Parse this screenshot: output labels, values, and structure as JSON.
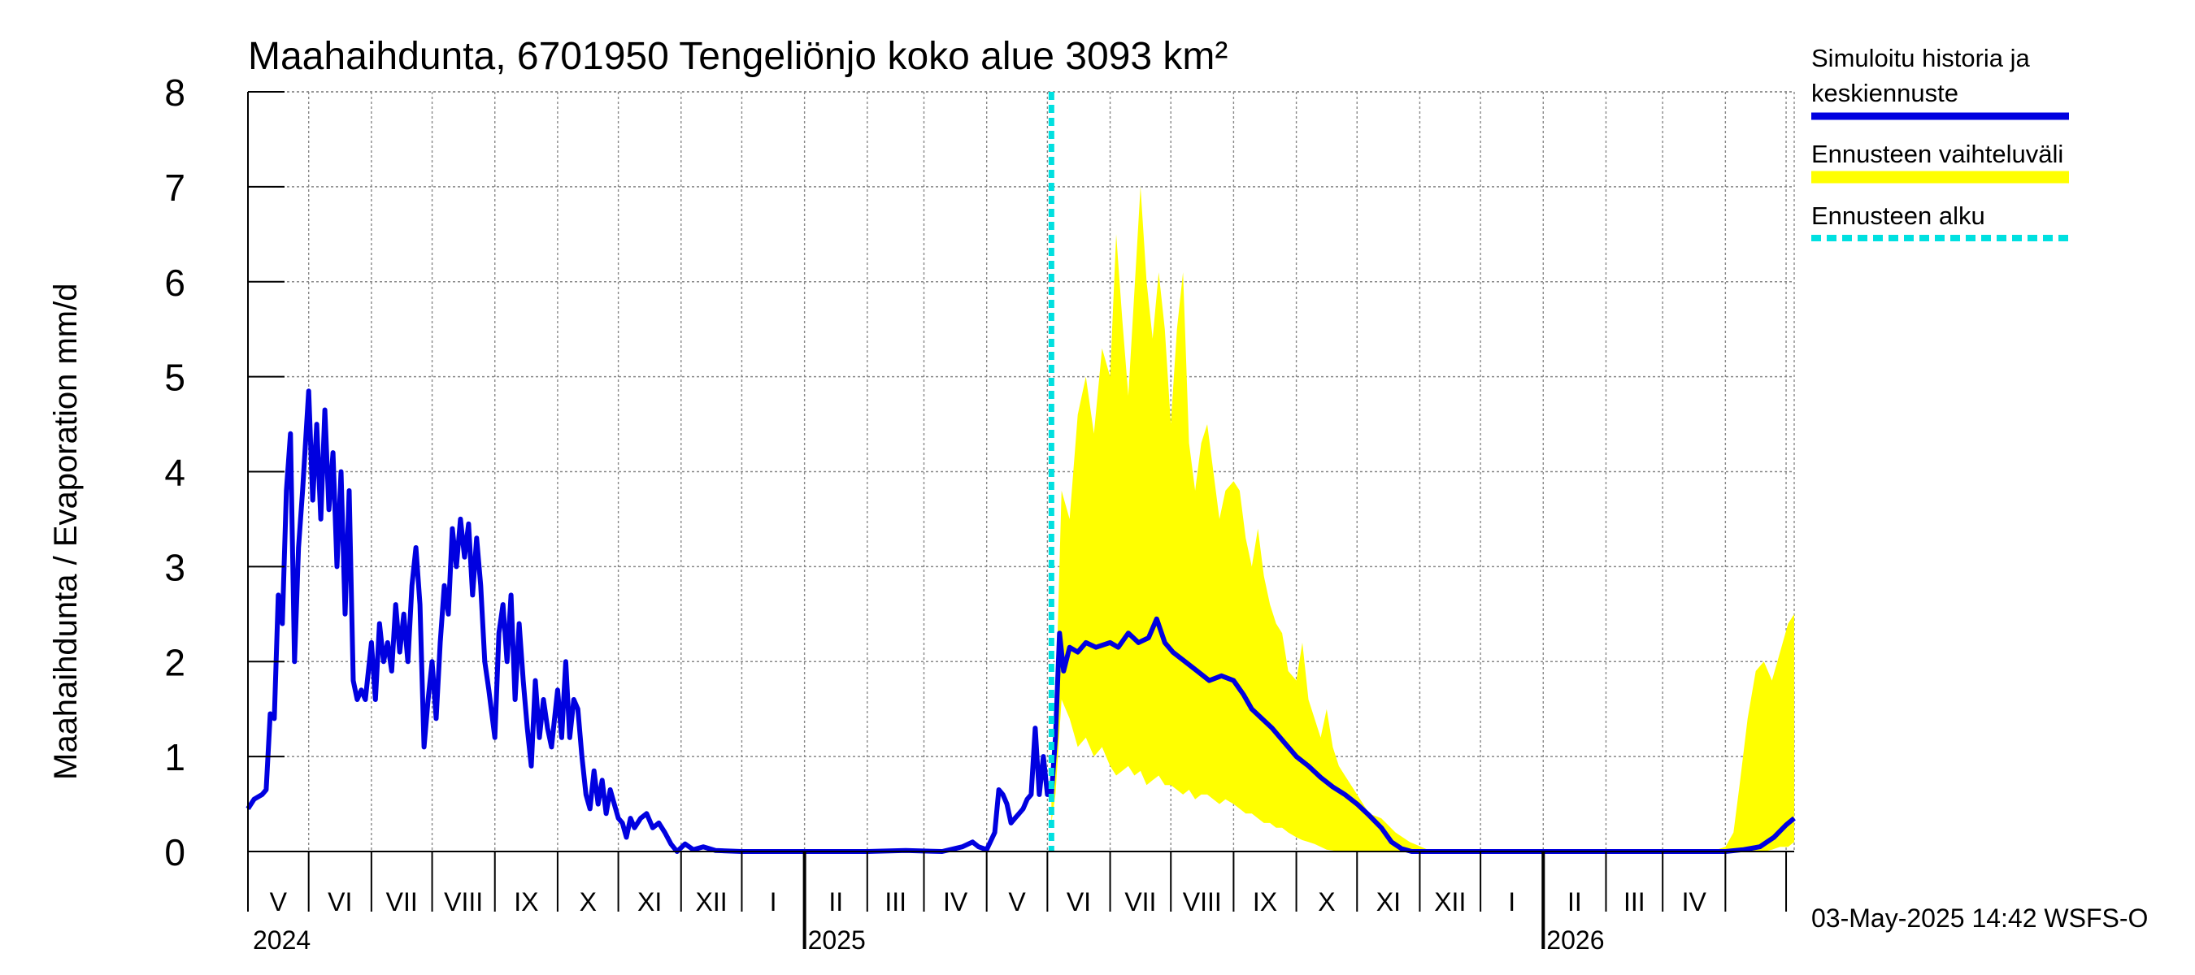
{
  "chart_data": {
    "type": "line",
    "title": "Maahaihdunta, 6701950 Tengeliönjo koko alue 3093 km²",
    "ylabel": "Maahaihdunta / Evaporation   mm/d",
    "ylim": [
      0,
      8
    ],
    "yticks": [
      "0",
      "1",
      "2",
      "3",
      "4",
      "5",
      "6",
      "7",
      "8"
    ],
    "xlim": [
      "2024-04-01",
      "2026-05-05"
    ],
    "month_labels": [
      "V",
      "VI",
      "VII",
      "VIII",
      "IX",
      "X",
      "XI",
      "XII",
      "I",
      "II",
      "III",
      "IV",
      "V",
      "VI",
      "VII",
      "VIII",
      "IX",
      "X",
      "XI",
      "XII",
      "I",
      "II",
      "III",
      "IV"
    ],
    "year_labels": [
      "2024",
      "2025",
      "2026"
    ],
    "forecast_start": "2025-05-03",
    "grid": true,
    "legend_position": "right",
    "legend": [
      {
        "label": "Simuloitu historia ja keskiennuste",
        "color": "#0000e0",
        "style": "solid"
      },
      {
        "label": "Ennusteen vaihteluväli",
        "color": "#ffff00",
        "style": "band"
      },
      {
        "label": "Ennusteen alku",
        "color": "#00e0e0",
        "style": "dashed"
      }
    ],
    "series": [
      {
        "name": "Simuloitu historia ja keskiennuste",
        "color": "#0000e0",
        "points": [
          [
            "2024-04-01",
            0.45
          ],
          [
            "2024-04-04",
            0.55
          ],
          [
            "2024-04-08",
            0.6
          ],
          [
            "2024-04-10",
            0.65
          ],
          [
            "2024-04-12",
            1.45
          ],
          [
            "2024-04-14",
            1.4
          ],
          [
            "2024-04-16",
            2.7
          ],
          [
            "2024-04-18",
            2.4
          ],
          [
            "2024-04-20",
            3.8
          ],
          [
            "2024-04-22",
            4.4
          ],
          [
            "2024-04-24",
            2.0
          ],
          [
            "2024-04-26",
            3.2
          ],
          [
            "2024-04-28",
            3.8
          ],
          [
            "2024-05-01",
            4.85
          ],
          [
            "2024-05-03",
            3.7
          ],
          [
            "2024-05-05",
            4.5
          ],
          [
            "2024-05-07",
            3.5
          ],
          [
            "2024-05-09",
            4.65
          ],
          [
            "2024-05-11",
            3.6
          ],
          [
            "2024-05-13",
            4.2
          ],
          [
            "2024-05-15",
            3.0
          ],
          [
            "2024-05-17",
            4.0
          ],
          [
            "2024-05-19",
            2.5
          ],
          [
            "2024-05-21",
            3.8
          ],
          [
            "2024-05-23",
            1.8
          ],
          [
            "2024-05-25",
            1.6
          ],
          [
            "2024-05-27",
            1.7
          ],
          [
            "2024-05-29",
            1.6
          ],
          [
            "2024-06-01",
            2.2
          ],
          [
            "2024-06-03",
            1.6
          ],
          [
            "2024-06-05",
            2.4
          ],
          [
            "2024-06-07",
            2.0
          ],
          [
            "2024-06-09",
            2.2
          ],
          [
            "2024-06-11",
            1.9
          ],
          [
            "2024-06-13",
            2.6
          ],
          [
            "2024-06-15",
            2.1
          ],
          [
            "2024-06-17",
            2.5
          ],
          [
            "2024-06-19",
            2.0
          ],
          [
            "2024-06-21",
            2.8
          ],
          [
            "2024-06-23",
            3.2
          ],
          [
            "2024-06-25",
            2.6
          ],
          [
            "2024-06-27",
            1.1
          ],
          [
            "2024-06-29",
            1.6
          ],
          [
            "2024-07-01",
            2.0
          ],
          [
            "2024-07-03",
            1.4
          ],
          [
            "2024-07-05",
            2.2
          ],
          [
            "2024-07-07",
            2.8
          ],
          [
            "2024-07-09",
            2.5
          ],
          [
            "2024-07-11",
            3.4
          ],
          [
            "2024-07-13",
            3.0
          ],
          [
            "2024-07-15",
            3.5
          ],
          [
            "2024-07-17",
            3.1
          ],
          [
            "2024-07-19",
            3.45
          ],
          [
            "2024-07-21",
            2.7
          ],
          [
            "2024-07-23",
            3.3
          ],
          [
            "2024-07-25",
            2.8
          ],
          [
            "2024-07-27",
            2.0
          ],
          [
            "2024-07-29",
            1.7
          ],
          [
            "2024-08-01",
            1.2
          ],
          [
            "2024-08-03",
            2.3
          ],
          [
            "2024-08-05",
            2.6
          ],
          [
            "2024-08-07",
            2.0
          ],
          [
            "2024-08-09",
            2.7
          ],
          [
            "2024-08-11",
            1.6
          ],
          [
            "2024-08-13",
            2.4
          ],
          [
            "2024-08-15",
            1.8
          ],
          [
            "2024-08-17",
            1.3
          ],
          [
            "2024-08-19",
            0.9
          ],
          [
            "2024-08-21",
            1.8
          ],
          [
            "2024-08-23",
            1.2
          ],
          [
            "2024-08-25",
            1.6
          ],
          [
            "2024-08-27",
            1.3
          ],
          [
            "2024-08-29",
            1.1
          ],
          [
            "2024-09-01",
            1.7
          ],
          [
            "2024-09-03",
            1.2
          ],
          [
            "2024-09-05",
            2.0
          ],
          [
            "2024-09-07",
            1.2
          ],
          [
            "2024-09-09",
            1.6
          ],
          [
            "2024-09-11",
            1.5
          ],
          [
            "2024-09-13",
            1.0
          ],
          [
            "2024-09-15",
            0.6
          ],
          [
            "2024-09-17",
            0.45
          ],
          [
            "2024-09-19",
            0.85
          ],
          [
            "2024-09-21",
            0.5
          ],
          [
            "2024-09-23",
            0.75
          ],
          [
            "2024-09-25",
            0.4
          ],
          [
            "2024-09-27",
            0.65
          ],
          [
            "2024-09-29",
            0.5
          ],
          [
            "2024-10-01",
            0.35
          ],
          [
            "2024-10-03",
            0.3
          ],
          [
            "2024-10-05",
            0.15
          ],
          [
            "2024-10-07",
            0.35
          ],
          [
            "2024-10-09",
            0.25
          ],
          [
            "2024-10-12",
            0.35
          ],
          [
            "2024-10-15",
            0.4
          ],
          [
            "2024-10-18",
            0.25
          ],
          [
            "2024-10-21",
            0.3
          ],
          [
            "2024-10-24",
            0.2
          ],
          [
            "2024-10-27",
            0.08
          ],
          [
            "2024-10-30",
            0.0
          ],
          [
            "2024-11-03",
            0.08
          ],
          [
            "2024-11-07",
            0.02
          ],
          [
            "2024-11-12",
            0.05
          ],
          [
            "2024-11-18",
            0.01
          ],
          [
            "2024-12-01",
            0.0
          ],
          [
            "2025-01-01",
            0.0
          ],
          [
            "2025-02-01",
            0.0
          ],
          [
            "2025-02-20",
            0.01
          ],
          [
            "2025-03-10",
            0.0
          ],
          [
            "2025-03-20",
            0.05
          ],
          [
            "2025-03-25",
            0.1
          ],
          [
            "2025-03-28",
            0.05
          ],
          [
            "2025-04-01",
            0.02
          ],
          [
            "2025-04-05",
            0.2
          ],
          [
            "2025-04-07",
            0.65
          ],
          [
            "2025-04-09",
            0.6
          ],
          [
            "2025-04-11",
            0.5
          ],
          [
            "2025-04-13",
            0.3
          ],
          [
            "2025-04-15",
            0.35
          ],
          [
            "2025-04-17",
            0.4
          ],
          [
            "2025-04-19",
            0.45
          ],
          [
            "2025-04-21",
            0.55
          ],
          [
            "2025-04-23",
            0.6
          ],
          [
            "2025-04-25",
            1.3
          ],
          [
            "2025-04-27",
            0.6
          ],
          [
            "2025-04-29",
            1.0
          ],
          [
            "2025-05-01",
            0.6
          ],
          [
            "2025-05-03",
            0.6
          ],
          [
            "2025-05-05",
            1.2
          ],
          [
            "2025-05-07",
            2.3
          ],
          [
            "2025-05-09",
            1.9
          ],
          [
            "2025-05-12",
            2.15
          ],
          [
            "2025-05-16",
            2.1
          ],
          [
            "2025-05-20",
            2.2
          ],
          [
            "2025-05-25",
            2.15
          ],
          [
            "2025-06-01",
            2.2
          ],
          [
            "2025-06-05",
            2.15
          ],
          [
            "2025-06-10",
            2.3
          ],
          [
            "2025-06-15",
            2.2
          ],
          [
            "2025-06-20",
            2.25
          ],
          [
            "2025-06-24",
            2.45
          ],
          [
            "2025-06-28",
            2.2
          ],
          [
            "2025-07-02",
            2.1
          ],
          [
            "2025-07-08",
            2.0
          ],
          [
            "2025-07-14",
            1.9
          ],
          [
            "2025-07-20",
            1.8
          ],
          [
            "2025-07-26",
            1.85
          ],
          [
            "2025-08-01",
            1.8
          ],
          [
            "2025-08-06",
            1.65
          ],
          [
            "2025-08-10",
            1.5
          ],
          [
            "2025-08-15",
            1.4
          ],
          [
            "2025-08-20",
            1.3
          ],
          [
            "2025-08-26",
            1.15
          ],
          [
            "2025-09-01",
            1.0
          ],
          [
            "2025-09-07",
            0.9
          ],
          [
            "2025-09-13",
            0.78
          ],
          [
            "2025-09-19",
            0.68
          ],
          [
            "2025-09-25",
            0.6
          ],
          [
            "2025-10-01",
            0.5
          ],
          [
            "2025-10-07",
            0.38
          ],
          [
            "2025-10-13",
            0.25
          ],
          [
            "2025-10-18",
            0.1
          ],
          [
            "2025-10-23",
            0.03
          ],
          [
            "2025-10-28",
            0.0
          ],
          [
            "2025-12-01",
            0.0
          ],
          [
            "2026-02-01",
            0.0
          ],
          [
            "2026-04-01",
            0.0
          ],
          [
            "2026-04-10",
            0.02
          ],
          [
            "2026-04-18",
            0.05
          ],
          [
            "2026-04-25",
            0.15
          ],
          [
            "2026-05-01",
            0.28
          ],
          [
            "2026-05-05",
            0.35
          ]
        ]
      },
      {
        "name": "Ennusteen vaihteluväli",
        "color": "#ffff00",
        "band": [
          [
            "2025-05-03",
            0.3,
            0.6
          ],
          [
            "2025-05-05",
            0.6,
            1.5
          ],
          [
            "2025-05-08",
            1.6,
            3.8
          ],
          [
            "2025-05-12",
            1.4,
            3.5
          ],
          [
            "2025-05-16",
            1.1,
            4.6
          ],
          [
            "2025-05-20",
            1.2,
            5.0
          ],
          [
            "2025-05-24",
            1.0,
            4.4
          ],
          [
            "2025-05-28",
            1.1,
            5.3
          ],
          [
            "2025-06-01",
            0.9,
            5.0
          ],
          [
            "2025-06-04",
            0.8,
            6.5
          ],
          [
            "2025-06-07",
            0.85,
            5.6
          ],
          [
            "2025-06-10",
            0.9,
            4.8
          ],
          [
            "2025-06-13",
            0.8,
            5.9
          ],
          [
            "2025-06-16",
            0.85,
            7.0
          ],
          [
            "2025-06-19",
            0.7,
            6.0
          ],
          [
            "2025-06-22",
            0.75,
            5.4
          ],
          [
            "2025-06-25",
            0.8,
            6.1
          ],
          [
            "2025-06-28",
            0.7,
            5.5
          ],
          [
            "2025-07-01",
            0.7,
            4.5
          ],
          [
            "2025-07-04",
            0.65,
            5.5
          ],
          [
            "2025-07-07",
            0.6,
            6.1
          ],
          [
            "2025-07-10",
            0.65,
            4.3
          ],
          [
            "2025-07-13",
            0.55,
            3.8
          ],
          [
            "2025-07-16",
            0.6,
            4.3
          ],
          [
            "2025-07-19",
            0.6,
            4.5
          ],
          [
            "2025-07-22",
            0.55,
            4.0
          ],
          [
            "2025-07-25",
            0.5,
            3.5
          ],
          [
            "2025-07-28",
            0.55,
            3.8
          ],
          [
            "2025-08-01",
            0.5,
            3.9
          ],
          [
            "2025-08-04",
            0.45,
            3.8
          ],
          [
            "2025-08-07",
            0.4,
            3.3
          ],
          [
            "2025-08-10",
            0.4,
            3.0
          ],
          [
            "2025-08-13",
            0.35,
            3.4
          ],
          [
            "2025-08-16",
            0.3,
            2.9
          ],
          [
            "2025-08-19",
            0.3,
            2.6
          ],
          [
            "2025-08-22",
            0.25,
            2.4
          ],
          [
            "2025-08-25",
            0.25,
            2.3
          ],
          [
            "2025-08-28",
            0.2,
            1.9
          ],
          [
            "2025-09-01",
            0.15,
            1.8
          ],
          [
            "2025-09-04",
            0.12,
            2.2
          ],
          [
            "2025-09-07",
            0.1,
            1.6
          ],
          [
            "2025-09-10",
            0.08,
            1.4
          ],
          [
            "2025-09-13",
            0.05,
            1.2
          ],
          [
            "2025-09-16",
            0.02,
            1.5
          ],
          [
            "2025-09-19",
            0.01,
            1.1
          ],
          [
            "2025-09-22",
            0.0,
            0.9
          ],
          [
            "2025-09-25",
            0.0,
            0.8
          ],
          [
            "2025-10-01",
            0.0,
            0.6
          ],
          [
            "2025-10-07",
            0.0,
            0.4
          ],
          [
            "2025-10-13",
            0.0,
            0.35
          ],
          [
            "2025-10-20",
            0.0,
            0.2
          ],
          [
            "2025-10-27",
            0.0,
            0.1
          ],
          [
            "2025-11-05",
            0.0,
            0.02
          ],
          [
            "2025-11-15",
            0.0,
            0.0
          ],
          [
            "2026-03-25",
            0.0,
            0.0
          ],
          [
            "2026-04-01",
            0.0,
            0.05
          ],
          [
            "2026-04-05",
            0.0,
            0.2
          ],
          [
            "2026-04-08",
            0.0,
            0.7
          ],
          [
            "2026-04-12",
            0.0,
            1.4
          ],
          [
            "2026-04-16",
            0.0,
            1.9
          ],
          [
            "2026-04-20",
            0.0,
            2.0
          ],
          [
            "2026-04-24",
            0.02,
            1.8
          ],
          [
            "2026-04-28",
            0.05,
            2.1
          ],
          [
            "2026-05-02",
            0.05,
            2.4
          ],
          [
            "2026-05-05",
            0.1,
            2.5
          ]
        ]
      }
    ]
  },
  "footer": {
    "timestamp": "03-May-2025 14:42 WSFS-O"
  }
}
